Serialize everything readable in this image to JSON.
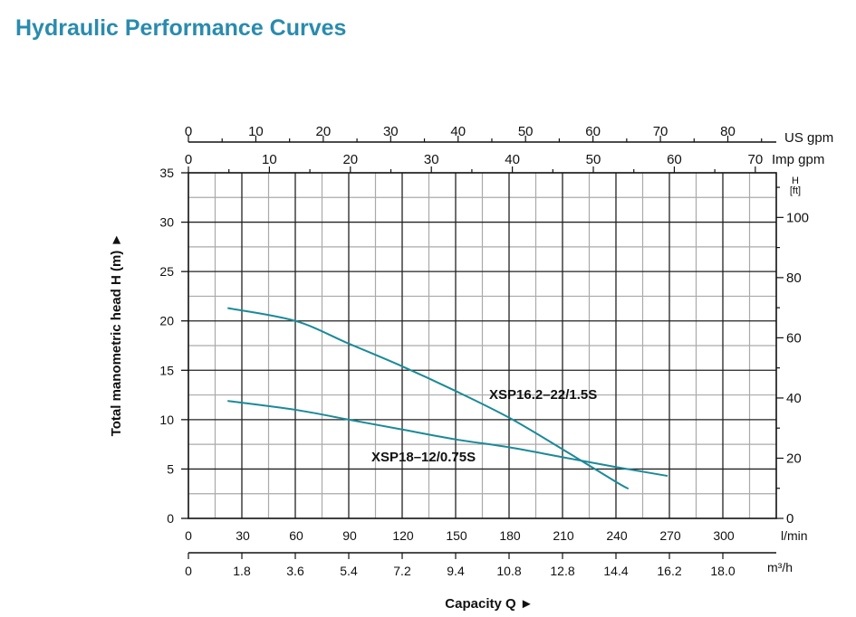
{
  "title": "Hydraulic Performance Curves",
  "chart_data": {
    "type": "line",
    "xlabel": "Capacity Q ►",
    "ylabel": "Total manometric head H (m) ►",
    "xlim": [
      0,
      330
    ],
    "ylim": [
      0,
      35
    ],
    "grid": true,
    "x_unit": "l/min",
    "x_ticks": [
      0,
      30,
      60,
      90,
      120,
      150,
      180,
      210,
      240,
      270,
      300
    ],
    "y_ticks": [
      0,
      5,
      10,
      15,
      20,
      25,
      30,
      35
    ],
    "m3h_unit": "m³/h",
    "m3h_ticks": [
      "0",
      "1.8",
      "3.6",
      "5.4",
      "7.2",
      "9.4",
      "10.8",
      "12.8",
      "14.4",
      "16.2",
      "18.0"
    ],
    "us_gpm_unit": "US gpm",
    "us_gpm_ticks": [
      0,
      10,
      20,
      30,
      40,
      50,
      60,
      70,
      80
    ],
    "imp_gpm_unit": "Imp gpm",
    "imp_gpm_ticks": [
      0,
      10,
      20,
      30,
      40,
      50,
      60,
      70
    ],
    "ft_unit_top": "H",
    "ft_unit_bottom": "[ft]",
    "ft_ticks": [
      0,
      20,
      40,
      60,
      80,
      100
    ],
    "series": [
      {
        "name": "XSP16.2–22/1.5S",
        "color": "#1b8a97",
        "x": [
          22,
          60,
          90,
          120,
          150,
          180,
          210,
          240,
          247
        ],
        "y": [
          21.3,
          20.0,
          17.7,
          15.4,
          12.9,
          10.2,
          7.0,
          3.7,
          3.0
        ]
      },
      {
        "name": "XSP18–12/0.75S",
        "color": "#1b8a97",
        "x": [
          22,
          60,
          90,
          120,
          150,
          180,
          210,
          240,
          269
        ],
        "y": [
          11.9,
          11.0,
          10.0,
          9.0,
          8.0,
          7.2,
          6.2,
          5.2,
          4.3
        ]
      }
    ]
  }
}
